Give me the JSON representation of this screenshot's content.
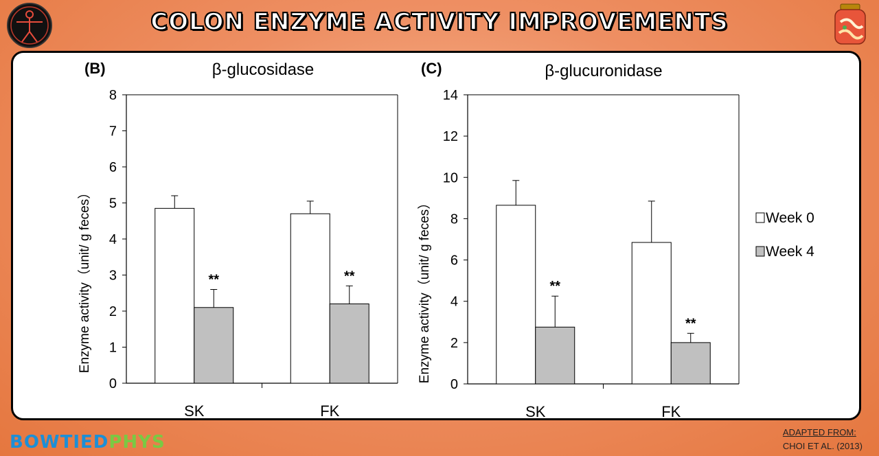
{
  "header": {
    "title": "COLON ENZYME ACTIVITY IMPROVEMENTS"
  },
  "footer": {
    "brand_part1": "BOWTIED",
    "brand_part2": "PHYS",
    "credit_line1": "ADAPTED FROM:",
    "credit_line2": "CHOI ET AL. (2013)"
  },
  "colors": {
    "week0": "#ffffff",
    "week4": "#c0c0c0",
    "axis": "#000000"
  },
  "chart_data": [
    {
      "type": "bar",
      "panel_label": "(B)",
      "title": "β-glucosidase",
      "ylabel": "Enzyme activity（unit/ g feces）",
      "categories": [
        "SK",
        "FK"
      ],
      "ylim": [
        0,
        8
      ],
      "yticks": [
        0,
        1,
        2,
        3,
        4,
        5,
        6,
        7,
        8
      ],
      "series": [
        {
          "name": "Week 0",
          "values": [
            4.85,
            4.7
          ],
          "errors": [
            0.35,
            0.35
          ],
          "sig": [
            "",
            ""
          ]
        },
        {
          "name": "Week 4",
          "values": [
            2.1,
            2.2
          ],
          "errors": [
            0.5,
            0.5
          ],
          "sig": [
            "**",
            "**"
          ]
        }
      ]
    },
    {
      "type": "bar",
      "panel_label": "(C)",
      "title": "β-glucuronidase",
      "ylabel": "Enzyme activity（unit/ g feces）",
      "categories": [
        "SK",
        "FK"
      ],
      "ylim": [
        0,
        14
      ],
      "yticks": [
        0,
        2,
        4,
        6,
        8,
        10,
        12,
        14
      ],
      "series": [
        {
          "name": "Week 0",
          "values": [
            8.65,
            6.85
          ],
          "errors": [
            1.2,
            2.0
          ],
          "sig": [
            "",
            ""
          ]
        },
        {
          "name": "Week 4",
          "values": [
            2.75,
            2.0
          ],
          "errors": [
            1.5,
            0.45
          ],
          "sig": [
            "**",
            "**"
          ]
        }
      ],
      "legend": [
        "Week 0",
        "Week 4"
      ],
      "legend_position": "right"
    }
  ]
}
